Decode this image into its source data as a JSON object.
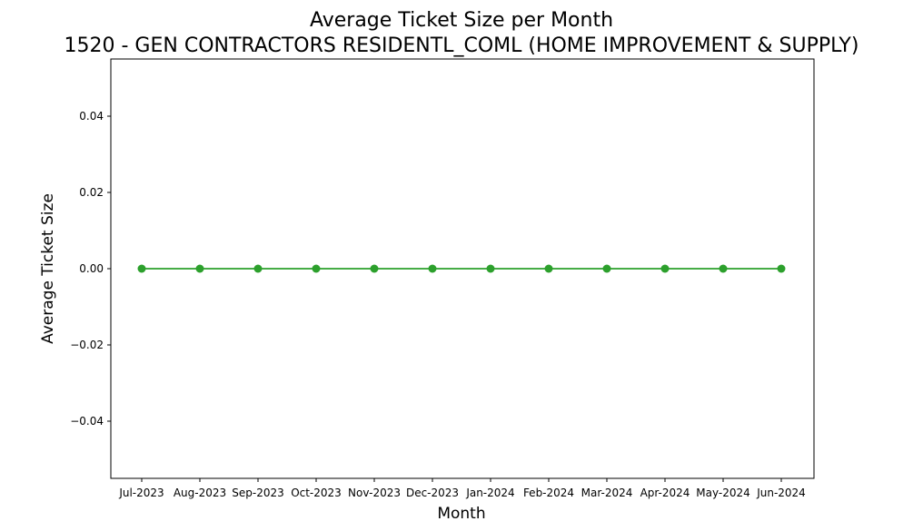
{
  "chart_data": {
    "type": "line",
    "title": "Average Ticket Size per Month",
    "subtitle": "1520 - GEN CONTRACTORS RESIDENTL_COML (HOME IMPROVEMENT & SUPPLY)",
    "xlabel": "Month",
    "ylabel": "Average Ticket Size",
    "categories": [
      "Jul-2023",
      "Aug-2023",
      "Sep-2023",
      "Oct-2023",
      "Nov-2023",
      "Dec-2023",
      "Jan-2024",
      "Feb-2024",
      "Mar-2024",
      "Apr-2024",
      "May-2024",
      "Jun-2024"
    ],
    "series": [
      {
        "values": [
          0,
          0,
          0,
          0,
          0,
          0,
          0,
          0,
          0,
          0,
          0,
          0
        ],
        "color": "#2ca02c"
      }
    ],
    "ylim": [
      -0.055,
      0.055
    ],
    "yticks": [
      0.04,
      0.02,
      0.0,
      -0.02,
      -0.04
    ],
    "ytick_labels": [
      "0.04",
      "0.02",
      "0.00",
      "−0.02",
      "−0.04"
    ],
    "grid": false,
    "legend": false
  }
}
